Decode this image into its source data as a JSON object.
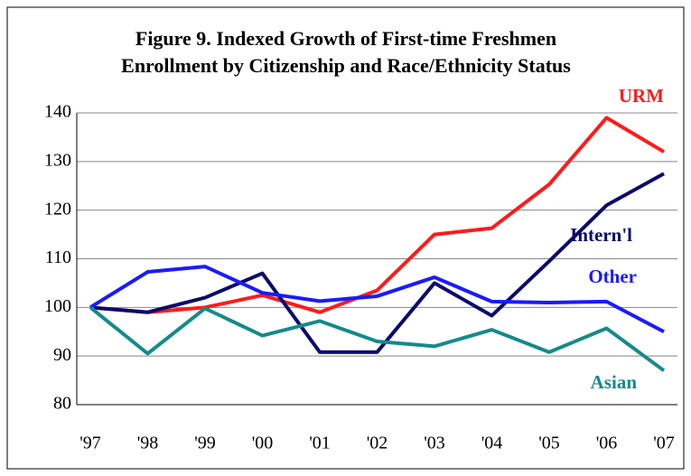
{
  "chart_data": {
    "type": "line",
    "title": [
      "Figure 9. Indexed Growth of First-time Freshmen",
      "Enrollment by Citizenship and Race/Ethnicity Status"
    ],
    "categories": [
      "'97",
      "'98",
      "'99",
      "'00",
      "'01",
      "'02",
      "'03",
      "'04",
      "'05",
      "'06",
      "'07"
    ],
    "series": [
      {
        "name": "URM",
        "color": "#ff1a1a",
        "values": [
          100,
          99,
          100,
          102.5,
          99,
          103.5,
          115,
          116.3,
          125.3,
          139,
          132
        ]
      },
      {
        "name": "Intern'l",
        "color": "#0a0a6e",
        "values": [
          100,
          99,
          102,
          107,
          90.8,
          90.8,
          105,
          98.3,
          109.5,
          121,
          127.5
        ]
      },
      {
        "name": "Other",
        "color": "#1a1aff",
        "values": [
          100,
          107.3,
          108.4,
          103,
          101.3,
          102.3,
          106.2,
          101.2,
          101,
          101.2,
          95
        ]
      },
      {
        "name": "Asian",
        "color": "#158a8a",
        "values": [
          100,
          90.5,
          99.8,
          94.2,
          97.2,
          93,
          92,
          95.4,
          90.8,
          95.7,
          87
        ]
      }
    ],
    "ylim": [
      80,
      140
    ],
    "yticks": [
      80,
      90,
      100,
      110,
      120,
      130,
      140
    ],
    "grid": true
  }
}
